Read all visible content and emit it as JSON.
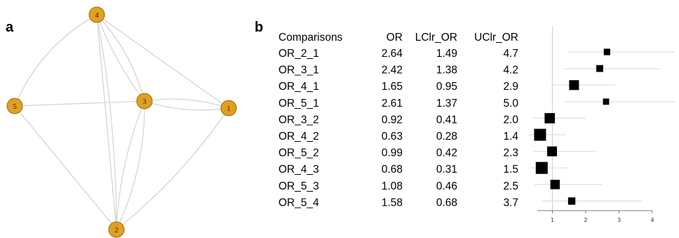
{
  "panels": {
    "a": "a",
    "b": "b"
  },
  "colors": {
    "node_fill": "#e2a020",
    "node_stroke": "#9a6a08",
    "edge": "#d4d4d4",
    "marker": "#000000",
    "ci_line": "#dedede",
    "ref_line": "#cfcfcf"
  },
  "chart_data": [
    {
      "type": "network",
      "nodes": [
        {
          "id": "1",
          "label": "1"
        },
        {
          "id": "2",
          "label": "2"
        },
        {
          "id": "3",
          "label": "3"
        },
        {
          "id": "4",
          "label": "4"
        },
        {
          "id": "5",
          "label": "5"
        }
      ],
      "edges": [
        [
          "1",
          "2"
        ],
        [
          "1",
          "3"
        ],
        [
          "1",
          "4"
        ],
        [
          "2",
          "3"
        ],
        [
          "2",
          "4"
        ],
        [
          "2",
          "5"
        ],
        [
          "3",
          "4"
        ],
        [
          "3",
          "5"
        ],
        [
          "4",
          "5"
        ]
      ]
    },
    {
      "type": "table",
      "columns": [
        "Comparisons",
        "OR",
        "LClr_OR",
        "UClr_OR"
      ],
      "rows": [
        [
          "OR_2_1",
          "2.64",
          "1.49",
          "4.7"
        ],
        [
          "OR_3_1",
          "2.42",
          "1.38",
          "4.2"
        ],
        [
          "OR_4_1",
          "1.65",
          "0.95",
          "2.9"
        ],
        [
          "OR_5_1",
          "2.61",
          "1.37",
          "5.0"
        ],
        [
          "OR_3_2",
          "0.92",
          "0.41",
          "2.0"
        ],
        [
          "OR_4_2",
          "0.63",
          "0.28",
          "1.4"
        ],
        [
          "OR_5_2",
          "0.99",
          "0.42",
          "2.3"
        ],
        [
          "OR_4_3",
          "0.68",
          "0.31",
          "1.5"
        ],
        [
          "OR_5_3",
          "1.08",
          "0.46",
          "2.5"
        ],
        [
          "OR_5_4",
          "1.58",
          "0.68",
          "3.7"
        ]
      ]
    },
    {
      "type": "scatter",
      "subtype": "forest",
      "reference_line": 1,
      "xlim": [
        0,
        4
      ],
      "xticks": [
        1,
        2,
        3,
        4
      ],
      "xticklabels": [
        "1",
        "2",
        "3",
        "4"
      ],
      "marker_weight": [
        0.35,
        0.4,
        0.75,
        0.32,
        0.8,
        1.0,
        0.75,
        1.0,
        0.7,
        0.45
      ],
      "points": [
        {
          "label": "OR_2_1",
          "or": 2.64,
          "lcl": 1.49,
          "ucl": 4.7
        },
        {
          "label": "OR_3_1",
          "or": 2.42,
          "lcl": 1.38,
          "ucl": 4.2
        },
        {
          "label": "OR_4_1",
          "or": 1.65,
          "lcl": 0.95,
          "ucl": 2.9
        },
        {
          "label": "OR_5_1",
          "or": 2.61,
          "lcl": 1.37,
          "ucl": 5.0
        },
        {
          "label": "OR_3_2",
          "or": 0.92,
          "lcl": 0.41,
          "ucl": 2.0
        },
        {
          "label": "OR_4_2",
          "or": 0.63,
          "lcl": 0.28,
          "ucl": 1.4
        },
        {
          "label": "OR_5_2",
          "or": 0.99,
          "lcl": 0.42,
          "ucl": 2.3
        },
        {
          "label": "OR_4_3",
          "or": 0.68,
          "lcl": 0.31,
          "ucl": 1.5
        },
        {
          "label": "OR_5_3",
          "or": 1.08,
          "lcl": 0.46,
          "ucl": 2.5
        },
        {
          "label": "OR_5_4",
          "or": 1.58,
          "lcl": 0.68,
          "ucl": 3.7
        }
      ]
    }
  ]
}
